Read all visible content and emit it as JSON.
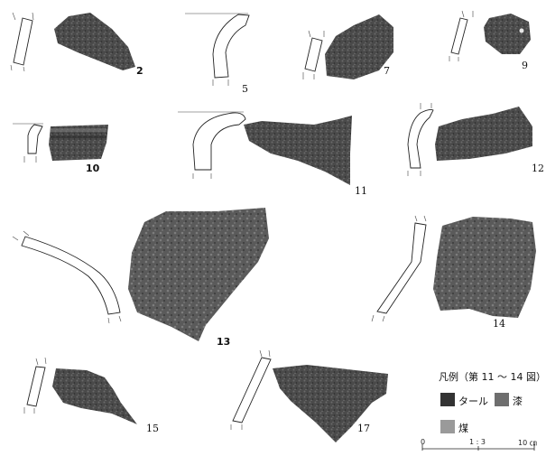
{
  "figure_labels": [
    "2",
    "5",
    "7",
    "9",
    "10",
    "11",
    "12",
    "13",
    "14",
    "15",
    "17"
  ],
  "legend": {
    "title": "凡例（第 11 〜 14 図）",
    "items": [
      {
        "label": "タール",
        "color": "#333333"
      },
      {
        "label": "漆",
        "color": "#6e6e6e"
      },
      {
        "label": "煤",
        "color": "#9a9a9a"
      }
    ],
    "scale": {
      "start": "0",
      "ratio": "1 : 3",
      "end": "10 ㎝"
    }
  },
  "colors": {
    "sherd_dark": "#3a3a3a",
    "sherd_mid": "#5b5b5b",
    "sherd_light": "#8a8a8a"
  }
}
